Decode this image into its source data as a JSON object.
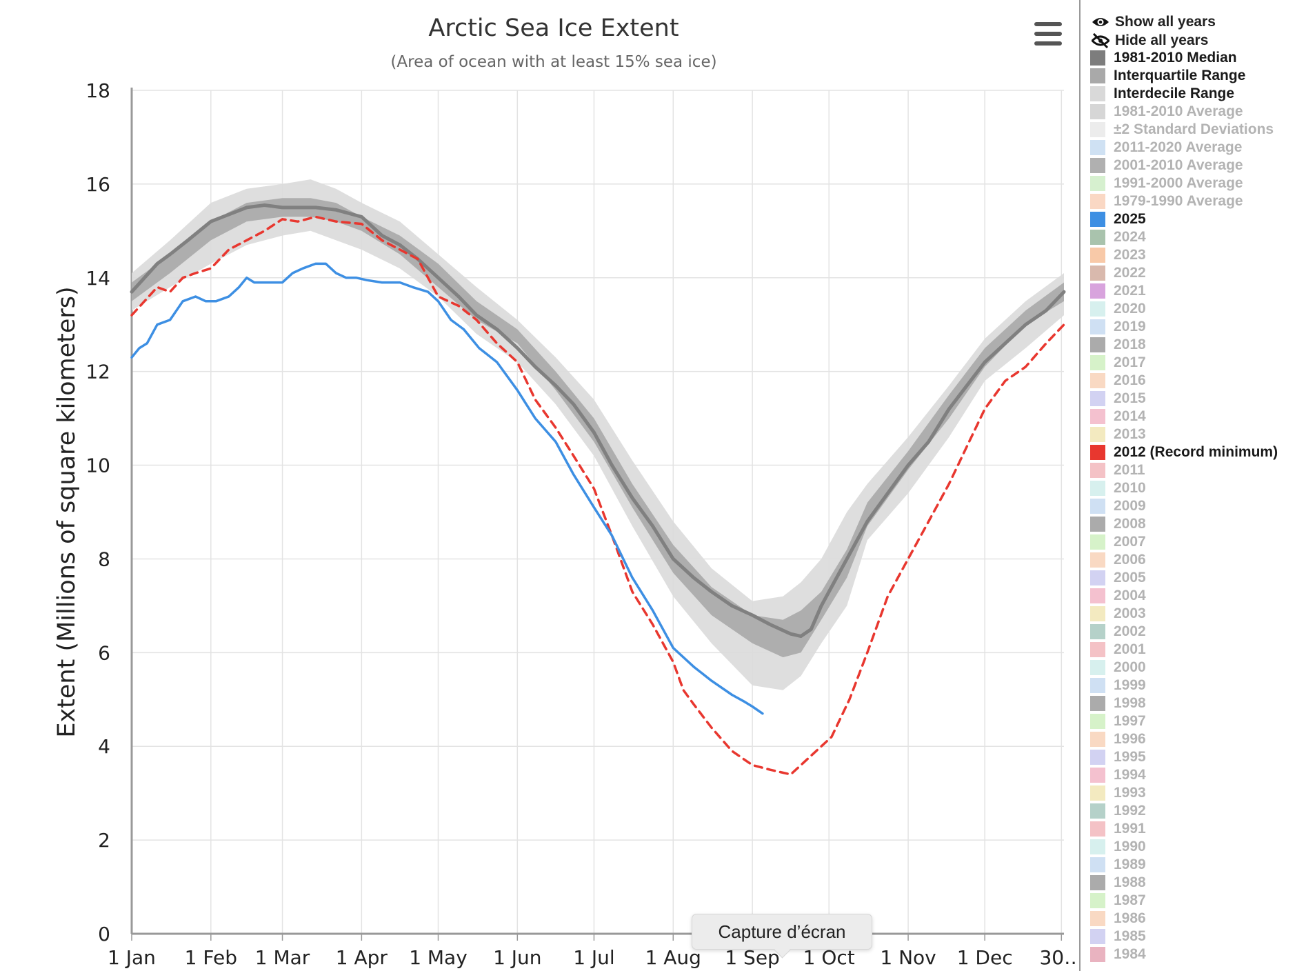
{
  "chart_data": {
    "type": "line",
    "title": "Arctic Sea Ice Extent",
    "subtitle": "(Area of ocean with at least 15% sea ice)",
    "xlabel": "",
    "ylabel": "Extent (Millions of square kilometers)",
    "ylim": [
      0,
      18
    ],
    "yticks": [
      "0",
      "2",
      "4",
      "6",
      "8",
      "10",
      "12",
      "14",
      "16",
      "18"
    ],
    "xlim": [
      0,
      365
    ],
    "xticks": [
      {
        "day": 0,
        "label": "1 Jan"
      },
      {
        "day": 31,
        "label": "1 Feb"
      },
      {
        "day": 59,
        "label": "1 Mar"
      },
      {
        "day": 90,
        "label": "1 Apr"
      },
      {
        "day": 120,
        "label": "1 May"
      },
      {
        "day": 151,
        "label": "1 Jun"
      },
      {
        "day": 181,
        "label": "1 Jul"
      },
      {
        "day": 212,
        "label": "1 Aug"
      },
      {
        "day": 243,
        "label": "1 Sep"
      },
      {
        "day": 273,
        "label": "1 Oct"
      },
      {
        "day": 304,
        "label": "1 Nov"
      },
      {
        "day": 334,
        "label": "1 Dec"
      },
      {
        "day": 364,
        "label": "30…"
      }
    ],
    "x_unit": "day of year",
    "grid": true,
    "legend_position": "right",
    "bands": [
      {
        "name": "Interdecile Range",
        "color": "#dadada",
        "x": [
          0,
          15,
          31,
          45,
          59,
          70,
          80,
          90,
          105,
          120,
          135,
          151,
          166,
          181,
          196,
          212,
          227,
          243,
          255,
          262,
          270,
          280,
          288,
          304,
          320,
          334,
          350,
          365
        ],
        "upper": [
          14.1,
          14.8,
          15.6,
          15.9,
          16.0,
          16.1,
          15.9,
          15.6,
          15.2,
          14.5,
          13.8,
          13.1,
          12.3,
          11.4,
          10.1,
          8.8,
          7.8,
          7.1,
          7.2,
          7.5,
          8.0,
          9.0,
          9.6,
          10.6,
          11.7,
          12.7,
          13.5,
          14.1
        ],
        "lower": [
          13.3,
          13.8,
          14.3,
          14.7,
          14.9,
          15.0,
          14.8,
          14.6,
          14.2,
          13.6,
          12.8,
          12.2,
          11.3,
          10.2,
          8.7,
          7.2,
          6.2,
          5.3,
          5.2,
          5.5,
          6.2,
          7.0,
          8.4,
          9.4,
          10.6,
          11.8,
          12.5,
          13.2
        ]
      },
      {
        "name": "Interquartile Range",
        "color": "#a9a9a9",
        "x": [
          0,
          15,
          31,
          45,
          59,
          70,
          80,
          90,
          105,
          120,
          135,
          151,
          166,
          181,
          196,
          212,
          227,
          243,
          255,
          262,
          270,
          280,
          288,
          304,
          320,
          334,
          350,
          365
        ],
        "upper": [
          13.9,
          14.5,
          15.2,
          15.6,
          15.7,
          15.7,
          15.6,
          15.3,
          14.9,
          14.3,
          13.5,
          12.9,
          12.0,
          11.0,
          9.6,
          8.3,
          7.4,
          6.8,
          6.7,
          6.9,
          7.3,
          8.2,
          9.2,
          10.3,
          11.5,
          12.5,
          13.3,
          13.9
        ],
        "lower": [
          13.5,
          14.1,
          14.8,
          15.2,
          15.3,
          15.3,
          15.2,
          15.0,
          14.5,
          13.8,
          13.1,
          12.6,
          11.6,
          10.5,
          9.1,
          7.7,
          6.8,
          6.2,
          5.9,
          6.0,
          6.7,
          7.6,
          8.7,
          9.9,
          11.0,
          12.1,
          13.0,
          13.5
        ]
      }
    ],
    "series": [
      {
        "name": "1981-2010 Median",
        "color": "#808080",
        "style": "solid",
        "x": [
          0,
          5,
          10,
          15,
          22,
          31,
          38,
          45,
          52,
          59,
          65,
          72,
          80,
          90,
          98,
          105,
          112,
          120,
          128,
          135,
          143,
          151,
          158,
          166,
          173,
          181,
          188,
          196,
          204,
          212,
          220,
          227,
          235,
          243,
          250,
          258,
          262,
          266,
          270,
          275,
          280,
          288,
          296,
          304,
          312,
          320,
          327,
          334,
          342,
          350,
          358,
          365
        ],
        "y": [
          13.7,
          14.0,
          14.3,
          14.5,
          14.8,
          15.2,
          15.35,
          15.5,
          15.55,
          15.5,
          15.5,
          15.5,
          15.45,
          15.3,
          14.9,
          14.7,
          14.4,
          14.0,
          13.6,
          13.2,
          12.9,
          12.5,
          12.1,
          11.7,
          11.3,
          10.7,
          10.0,
          9.3,
          8.7,
          8.0,
          7.6,
          7.3,
          7.0,
          6.8,
          6.6,
          6.4,
          6.35,
          6.5,
          7.0,
          7.5,
          8.0,
          8.8,
          9.4,
          10.0,
          10.5,
          11.2,
          11.7,
          12.2,
          12.6,
          13.0,
          13.3,
          13.7
        ]
      },
      {
        "name": "2012 (Record minimum)",
        "color": "#e8372f",
        "style": "dashed",
        "x": [
          0,
          5,
          10,
          15,
          20,
          25,
          31,
          38,
          45,
          52,
          59,
          65,
          72,
          80,
          90,
          98,
          105,
          112,
          120,
          128,
          135,
          143,
          151,
          158,
          166,
          173,
          181,
          188,
          196,
          204,
          212,
          216,
          220,
          227,
          235,
          243,
          250,
          258,
          266,
          274,
          281,
          288,
          296,
          304,
          312,
          320,
          327,
          334,
          342,
          350,
          358,
          365
        ],
        "y": [
          13.2,
          13.5,
          13.8,
          13.7,
          14.0,
          14.1,
          14.2,
          14.6,
          14.8,
          15.0,
          15.25,
          15.2,
          15.3,
          15.2,
          15.15,
          14.8,
          14.6,
          14.4,
          13.6,
          13.4,
          13.1,
          12.6,
          12.2,
          11.4,
          10.8,
          10.2,
          9.5,
          8.5,
          7.3,
          6.6,
          5.8,
          5.2,
          4.9,
          4.4,
          3.9,
          3.6,
          3.5,
          3.4,
          3.8,
          4.2,
          5.0,
          6.0,
          7.2,
          8.0,
          8.8,
          9.6,
          10.4,
          11.2,
          11.8,
          12.1,
          12.6,
          13.0
        ]
      },
      {
        "name": "2025",
        "color": "#3d8fe3",
        "style": "solid",
        "x": [
          0,
          3,
          6,
          10,
          15,
          20,
          25,
          29,
          33,
          38,
          42,
          45,
          48,
          52,
          56,
          59,
          63,
          67,
          72,
          76,
          80,
          84,
          88,
          92,
          98,
          105,
          110,
          116,
          120,
          125,
          130,
          136,
          143,
          151,
          158,
          166,
          173,
          181,
          188,
          196,
          204,
          212,
          220,
          227,
          235,
          240,
          243,
          247
        ],
        "y": [
          12.3,
          12.5,
          12.6,
          13.0,
          13.1,
          13.5,
          13.6,
          13.5,
          13.5,
          13.6,
          13.8,
          14.0,
          13.9,
          13.9,
          13.9,
          13.9,
          14.1,
          14.2,
          14.3,
          14.3,
          14.1,
          14.0,
          14.0,
          13.95,
          13.9,
          13.9,
          13.8,
          13.7,
          13.5,
          13.1,
          12.9,
          12.5,
          12.2,
          11.6,
          11.0,
          10.5,
          9.8,
          9.1,
          8.5,
          7.6,
          6.9,
          6.1,
          5.7,
          5.4,
          5.1,
          4.95,
          4.85,
          4.7
        ]
      }
    ]
  },
  "menu": {
    "icon": "hamburger-menu-icon"
  },
  "legend": {
    "controls": [
      {
        "label": "Show all years",
        "icon": "eye-icon"
      },
      {
        "label": "Hide all years",
        "icon": "eye-slash-icon"
      }
    ],
    "items": [
      {
        "label": "1981-2010 Median",
        "color": "#7d7d7d",
        "active": true
      },
      {
        "label": "Interquartile Range",
        "color": "#a9a9a9",
        "active": true
      },
      {
        "label": "Interdecile Range",
        "color": "#d9d9d9",
        "active": true
      },
      {
        "label": "1981-2010 Average",
        "color": "#d6d6d6",
        "active": false
      },
      {
        "label": "±2 Standard Deviations",
        "color": "#ececec",
        "active": false
      },
      {
        "label": "2011-2020 Average",
        "color": "#cfe1f3",
        "active": false
      },
      {
        "label": "2001-2010 Average",
        "color": "#b0b0b0",
        "active": false
      },
      {
        "label": "1991-2000 Average",
        "color": "#d6f0cf",
        "active": false
      },
      {
        "label": "1979-1990 Average",
        "color": "#fad8c4",
        "active": false
      },
      {
        "label": "2025",
        "color": "#3d8fe3",
        "active": true
      },
      {
        "label": "2024",
        "color": "#a9c3ad",
        "active": false
      },
      {
        "label": "2023",
        "color": "#f8c9a8",
        "active": false
      },
      {
        "label": "2022",
        "color": "#d9b9ad",
        "active": false
      },
      {
        "label": "2021",
        "color": "#d8a3dd",
        "active": false
      },
      {
        "label": "2020",
        "color": "#d7f0ee",
        "active": false
      },
      {
        "label": "2019",
        "color": "#cfe0f3",
        "active": false
      },
      {
        "label": "2018",
        "color": "#ababab",
        "active": false
      },
      {
        "label": "2017",
        "color": "#d6f2c9",
        "active": false
      },
      {
        "label": "2016",
        "color": "#f9d9c3",
        "active": false
      },
      {
        "label": "2015",
        "color": "#d2d2f2",
        "active": false
      },
      {
        "label": "2014",
        "color": "#f4c1cf",
        "active": false
      },
      {
        "label": "2013",
        "color": "#f3eac0",
        "active": false
      },
      {
        "label": "2012 (Record minimum)",
        "color": "#e8372f",
        "active": true
      },
      {
        "label": "2011",
        "color": "#f4c2c6",
        "active": false
      },
      {
        "label": "2010",
        "color": "#d7f0ee",
        "active": false
      },
      {
        "label": "2009",
        "color": "#cfe0f3",
        "active": false
      },
      {
        "label": "2008",
        "color": "#ababab",
        "active": false
      },
      {
        "label": "2007",
        "color": "#d6f2c9",
        "active": false
      },
      {
        "label": "2006",
        "color": "#f9d9c3",
        "active": false
      },
      {
        "label": "2005",
        "color": "#d2d2f2",
        "active": false
      },
      {
        "label": "2004",
        "color": "#f4c1cf",
        "active": false
      },
      {
        "label": "2003",
        "color": "#f3eac0",
        "active": false
      },
      {
        "label": "2002",
        "color": "#b5d1c9",
        "active": false
      },
      {
        "label": "2001",
        "color": "#f4c2c6",
        "active": false
      },
      {
        "label": "2000",
        "color": "#d7f0ee",
        "active": false
      },
      {
        "label": "1999",
        "color": "#cfe0f3",
        "active": false
      },
      {
        "label": "1998",
        "color": "#ababab",
        "active": false
      },
      {
        "label": "1997",
        "color": "#d6f2c9",
        "active": false
      },
      {
        "label": "1996",
        "color": "#f9d9c3",
        "active": false
      },
      {
        "label": "1995",
        "color": "#d2d2f2",
        "active": false
      },
      {
        "label": "1994",
        "color": "#f4c1cf",
        "active": false
      },
      {
        "label": "1993",
        "color": "#f3eac0",
        "active": false
      },
      {
        "label": "1992",
        "color": "#b5d1c9",
        "active": false
      },
      {
        "label": "1991",
        "color": "#f4c2c6",
        "active": false
      },
      {
        "label": "1990",
        "color": "#d7f0ee",
        "active": false
      },
      {
        "label": "1989",
        "color": "#cfe0f3",
        "active": false
      },
      {
        "label": "1988",
        "color": "#ababab",
        "active": false
      },
      {
        "label": "1987",
        "color": "#d6f2c9",
        "active": false
      },
      {
        "label": "1986",
        "color": "#f9d9c3",
        "active": false
      },
      {
        "label": "1985",
        "color": "#d2d2f2",
        "active": false
      },
      {
        "label": "1984",
        "color": "#e9b3c0",
        "active": false
      }
    ]
  },
  "tooltip": {
    "label": "Capture d’écran"
  }
}
